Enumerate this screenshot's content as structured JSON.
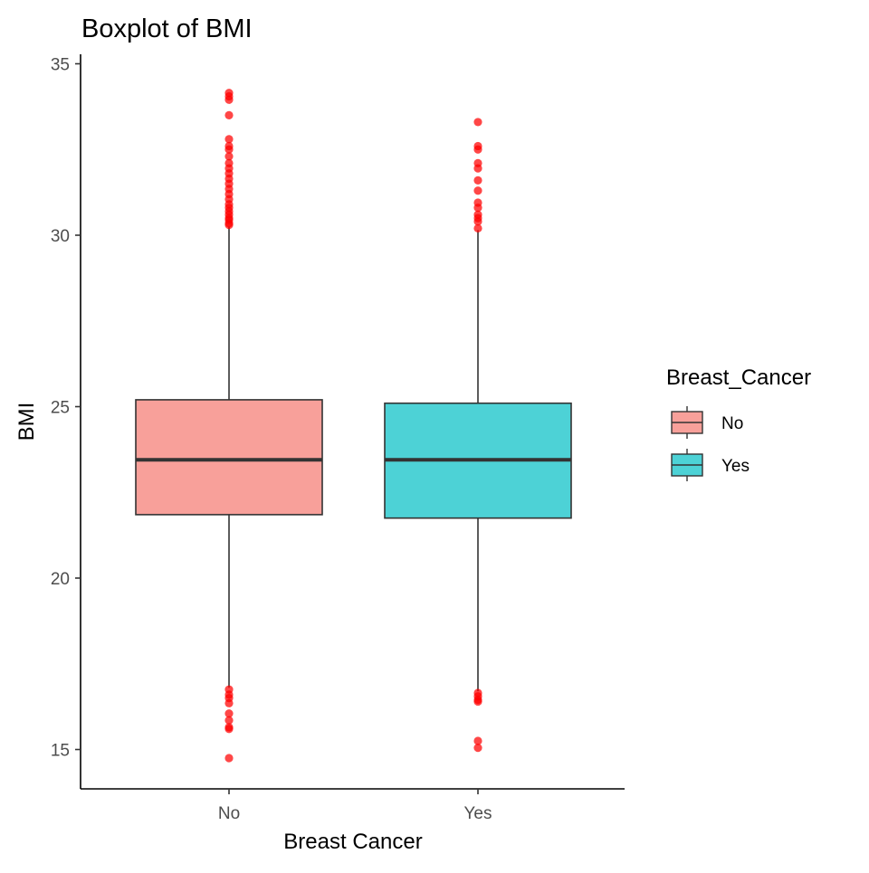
{
  "chart_data": {
    "type": "boxplot",
    "title": "Boxplot of BMI",
    "xlabel": "Breast Cancer",
    "ylabel": "BMI",
    "ylim": [
      13.8,
      35.2
    ],
    "yticks": [
      15,
      20,
      25,
      30,
      35
    ],
    "categories": [
      "No",
      "Yes"
    ],
    "boxes": [
      {
        "category": "No",
        "fill": "#F8A09A",
        "q1": 21.85,
        "median": 23.45,
        "q3": 25.2,
        "whisker_low": 16.8,
        "whisker_high": 30.25,
        "outliers": [
          34.15,
          34.05,
          33.95,
          33.5,
          32.8,
          32.6,
          32.5,
          32.3,
          32.1,
          31.95,
          31.8,
          31.65,
          31.5,
          31.35,
          31.2,
          31.05,
          30.9,
          30.8,
          30.7,
          30.6,
          30.5,
          30.45,
          30.35,
          30.3,
          16.75,
          16.6,
          16.5,
          16.35,
          16.05,
          15.85,
          15.65,
          15.6,
          14.75
        ]
      },
      {
        "category": "Yes",
        "fill": "#4DD2D6",
        "q1": 21.75,
        "median": 23.45,
        "q3": 25.1,
        "whisker_low": 16.7,
        "whisker_high": 30.15,
        "outliers": [
          33.3,
          32.6,
          32.5,
          32.1,
          31.95,
          31.6,
          31.3,
          30.95,
          30.8,
          30.6,
          30.5,
          30.4,
          30.2,
          16.65,
          16.55,
          16.45,
          16.4,
          15.25,
          15.05
        ]
      }
    ],
    "outlier_color": "#FF0000",
    "grid": false,
    "legend": {
      "title": "Breast_Cancer",
      "placement": "right",
      "items": [
        {
          "label": "No",
          "fill": "#F8A09A"
        },
        {
          "label": "Yes",
          "fill": "#4DD2D6"
        }
      ]
    }
  }
}
